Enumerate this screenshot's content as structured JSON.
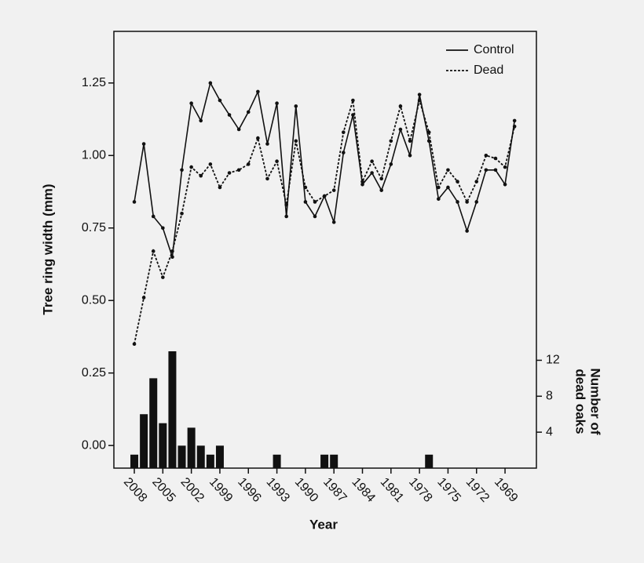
{
  "chart_data": {
    "type": "line",
    "xlabel": "Year",
    "ylabel": "Tree ring width (mm)",
    "y2label": [
      "Number of",
      "dead oaks"
    ],
    "x": [
      2008,
      2007,
      2006,
      2005,
      2004,
      2003,
      2002,
      2001,
      2000,
      1999,
      1998,
      1997,
      1996,
      1995,
      1994,
      1993,
      1992,
      1991,
      1990,
      1989,
      1988,
      1987,
      1986,
      1985,
      1984,
      1983,
      1982,
      1981,
      1980,
      1979,
      1978,
      1977,
      1976,
      1975,
      1974,
      1973,
      1972,
      1971,
      1970,
      1969,
      1968
    ],
    "series": [
      {
        "name": "Control",
        "color": "#111111",
        "linestyle": "solid",
        "values": [
          0.84,
          1.04,
          0.79,
          0.75,
          0.65,
          0.95,
          1.18,
          1.12,
          1.25,
          1.19,
          1.14,
          1.09,
          1.15,
          1.22,
          1.04,
          1.18,
          0.79,
          1.17,
          0.84,
          0.79,
          0.86,
          0.77,
          1.01,
          1.14,
          0.9,
          0.94,
          0.88,
          0.97,
          1.09,
          1.0,
          1.21,
          1.05,
          0.85,
          0.89,
          0.84,
          0.74,
          0.84,
          0.95,
          0.95,
          0.9,
          1.12
        ]
      },
      {
        "name": "Dead",
        "color": "#111111",
        "linestyle": "dotted",
        "values": [
          0.35,
          0.51,
          0.67,
          0.58,
          0.67,
          0.8,
          0.96,
          0.93,
          0.97,
          0.89,
          0.94,
          0.95,
          0.97,
          1.06,
          0.92,
          0.98,
          0.83,
          1.05,
          0.89,
          0.84,
          0.86,
          0.88,
          1.08,
          1.19,
          0.91,
          0.98,
          0.92,
          1.05,
          1.17,
          1.05,
          1.19,
          1.08,
          0.89,
          0.95,
          0.91,
          0.84,
          0.91,
          1.0,
          0.99,
          0.96,
          1.1
        ]
      }
    ],
    "bar_series": {
      "axis": "y2",
      "color": "#111111",
      "x": [
        2008,
        2007,
        2006,
        2005,
        2004,
        2003,
        2002,
        2001,
        2000,
        1999,
        1993,
        1988,
        1987,
        1977
      ],
      "values": [
        1.5,
        6,
        10,
        5,
        13,
        2.5,
        4.5,
        2.5,
        1.5,
        2.5,
        1.5,
        1.5,
        1.5,
        1.5
      ]
    },
    "xlim": [
      2010.15,
      1965.7
    ],
    "xticks": [
      2008,
      2005,
      2002,
      1999,
      1996,
      1993,
      1990,
      1987,
      1984,
      1981,
      1978,
      1975,
      1972,
      1969
    ],
    "ylim": [
      -0.078,
      1.428
    ],
    "yticks": [
      {
        "value": 0,
        "label": "0.00"
      },
      0.25,
      {
        "value": 0.5,
        "label": "0.50"
      },
      0.75,
      {
        "value": 1,
        "label": "1.00"
      },
      1.25
    ],
    "y2lim": [
      0,
      48.6
    ],
    "y2ticks": [
      4,
      8,
      12
    ],
    "legend": "upper right"
  }
}
